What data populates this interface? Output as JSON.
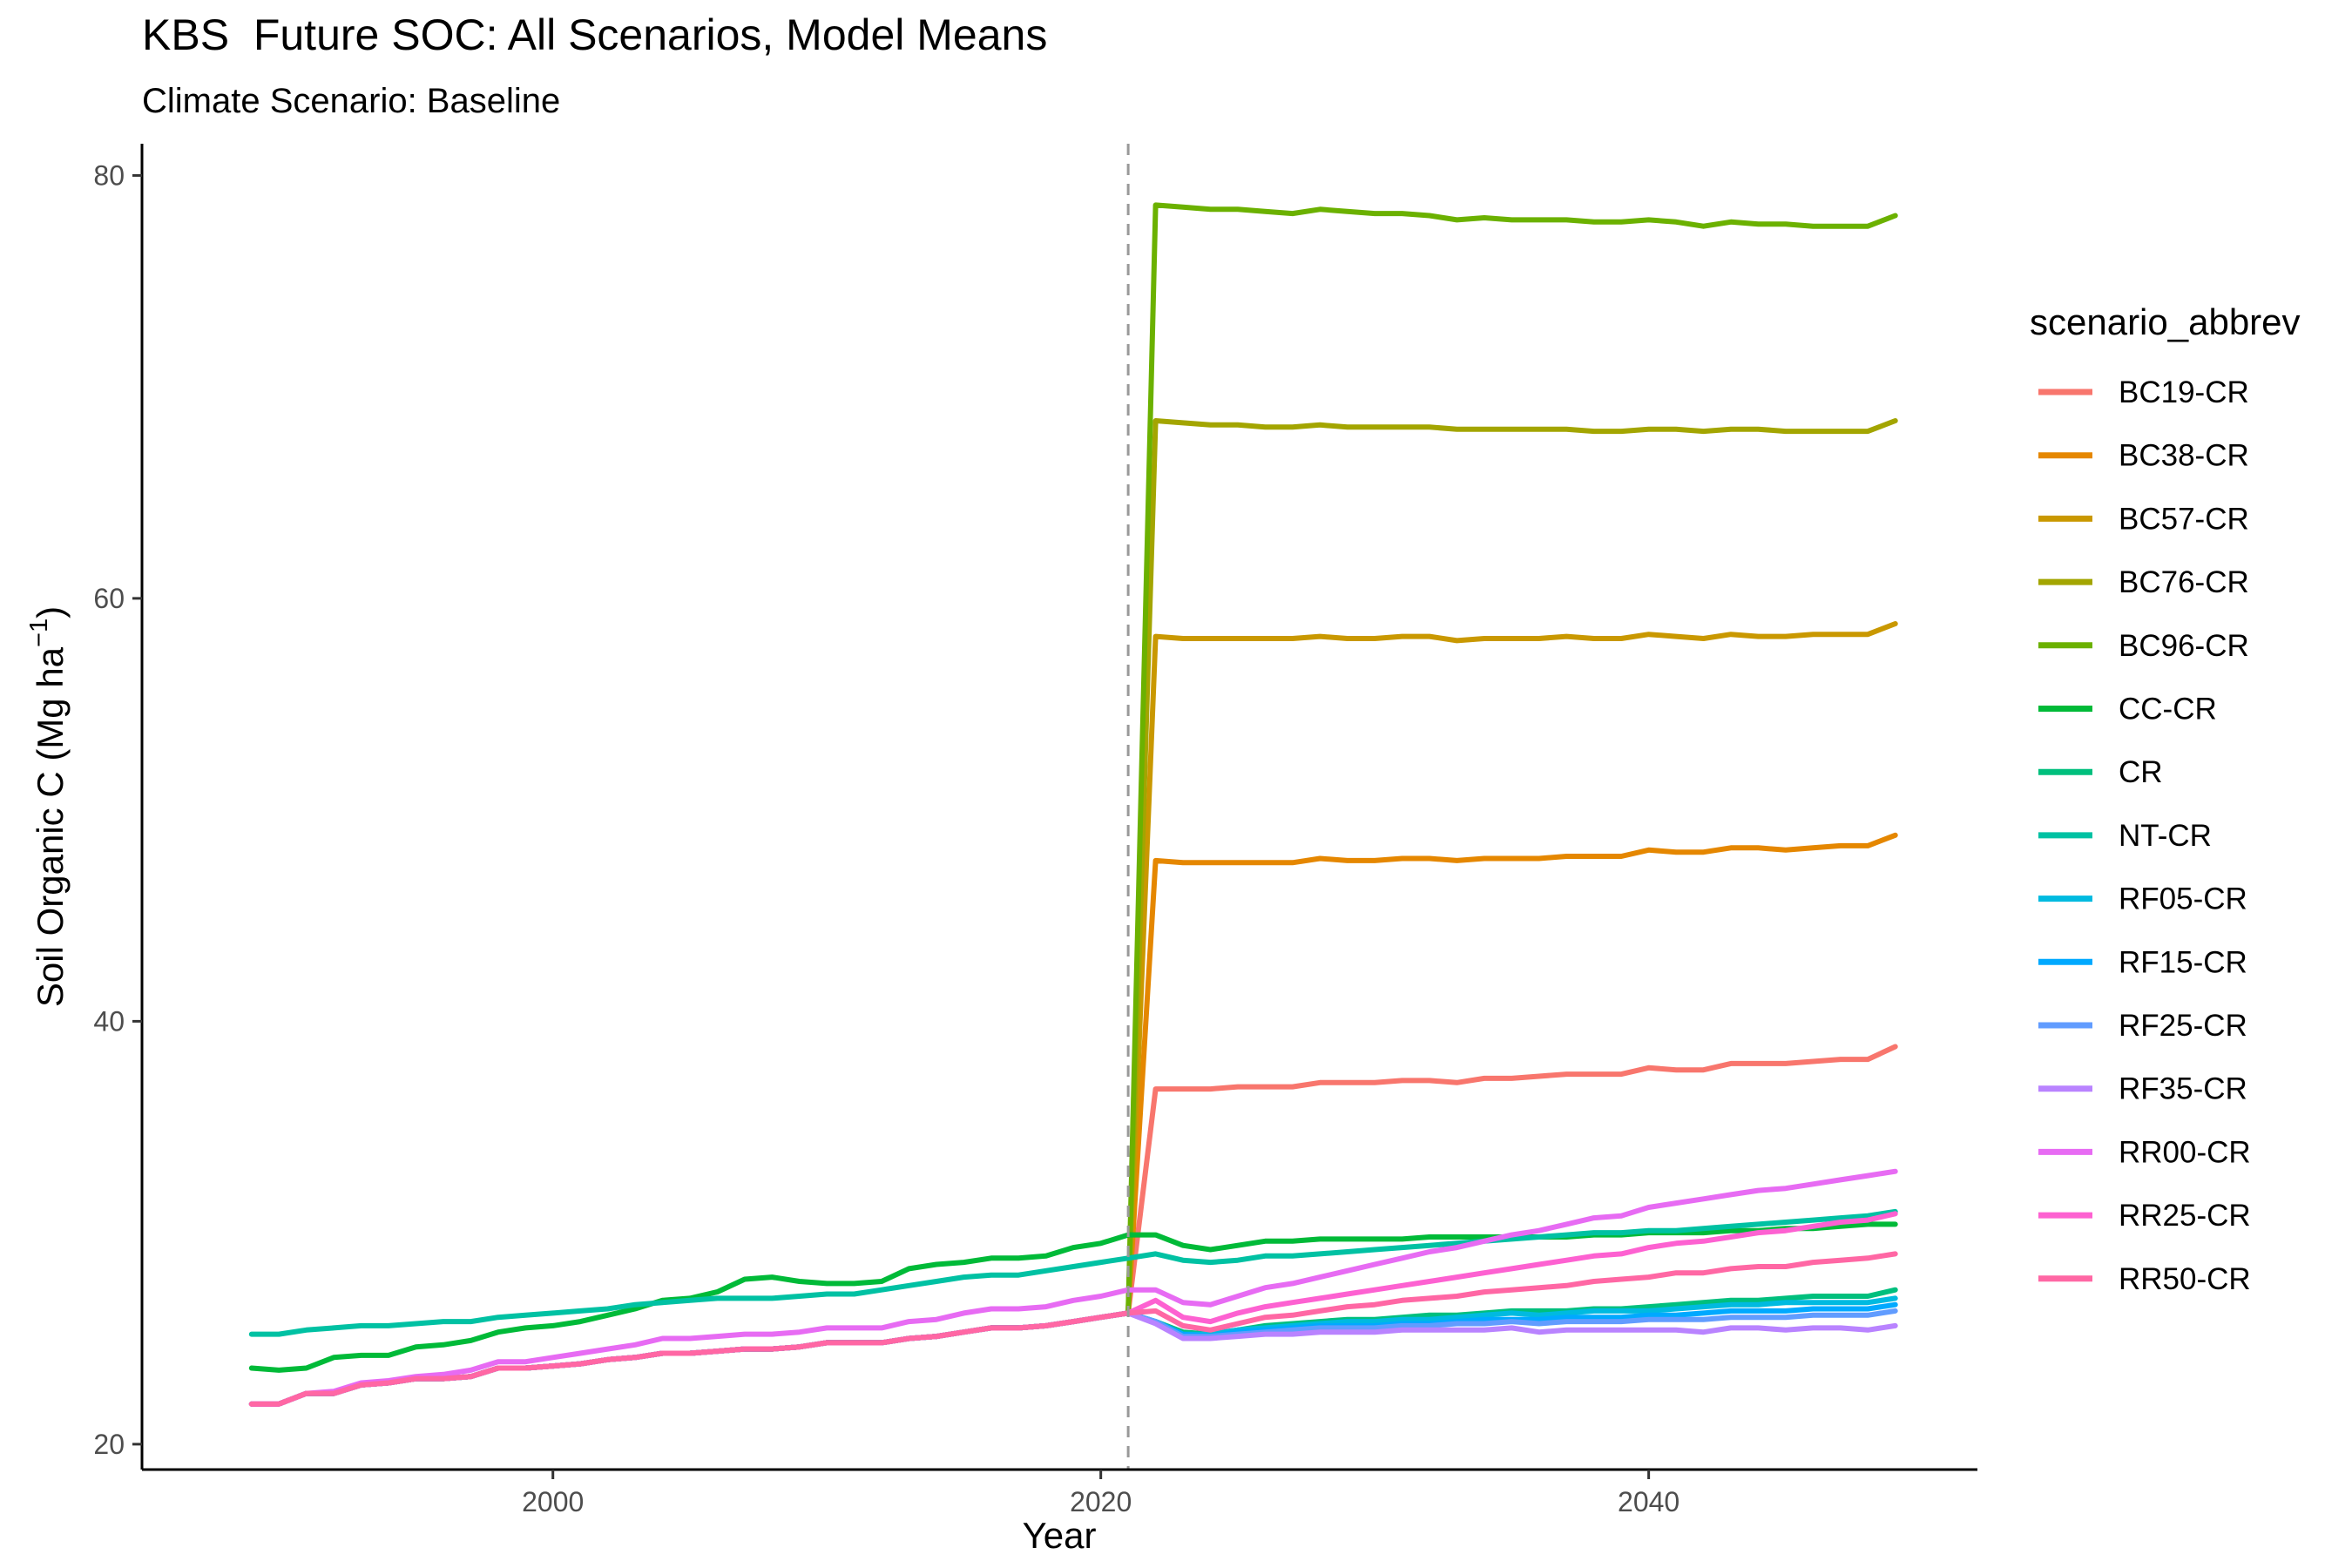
{
  "chart_data": {
    "type": "line",
    "title": "KBS  Future SOC: All Scenarios, Model Means",
    "subtitle": "Climate Scenario: Baseline",
    "xlabel": "Year",
    "ylabel": "Soil Organic C (Mg ha",
    "ylabel_sup": "−1",
    "ylabel_close": ")",
    "xlim": [
      1985,
      2052
    ],
    "ylim": [
      18.8,
      81.5
    ],
    "x_ticks": [
      2000,
      2020,
      2040
    ],
    "y_ticks": [
      20,
      40,
      60,
      80
    ],
    "vline": 2021,
    "grid": false,
    "legend_title": "scenario_abbrev",
    "legend_position": "right",
    "shared": {
      "years_hist": [
        1989,
        1990,
        1991,
        1992,
        1993,
        1994,
        1995,
        1996,
        1997,
        1998,
        1999,
        2000,
        2001,
        2002,
        2003,
        2004,
        2005,
        2006,
        2007,
        2008,
        2009,
        2010,
        2011,
        2012,
        2013,
        2014,
        2015,
        2016,
        2017,
        2018,
        2019,
        2020,
        2021
      ],
      "conv_hist": [
        21.9,
        21.9,
        22.4,
        22.4,
        22.8,
        22.9,
        23.1,
        23.1,
        23.2,
        23.6,
        23.6,
        23.7,
        23.8,
        24.0,
        24.1,
        24.3,
        24.3,
        24.4,
        24.5,
        24.5,
        24.6,
        24.8,
        24.8,
        24.8,
        25.0,
        25.1,
        25.3,
        25.5,
        25.5,
        25.6,
        25.8,
        26.0,
        26.2
      ],
      "years_future": [
        2022,
        2023,
        2024,
        2025,
        2026,
        2027,
        2028,
        2029,
        2030,
        2031,
        2032,
        2033,
        2034,
        2035,
        2036,
        2037,
        2038,
        2039,
        2040,
        2041,
        2042,
        2043,
        2044,
        2045,
        2046,
        2047,
        2048,
        2049
      ]
    },
    "series": [
      {
        "name": "BC19-CR",
        "color": "#F8766D",
        "future": [
          36.8,
          36.8,
          36.8,
          36.9,
          36.9,
          36.9,
          37.1,
          37.1,
          37.1,
          37.2,
          37.2,
          37.1,
          37.3,
          37.3,
          37.4,
          37.5,
          37.5,
          37.5,
          37.8,
          37.7,
          37.7,
          38.0,
          38.0,
          38.0,
          38.1,
          38.2,
          38.2,
          38.8
        ]
      },
      {
        "name": "BC38-CR",
        "color": "#E58700",
        "future": [
          47.6,
          47.5,
          47.5,
          47.5,
          47.5,
          47.5,
          47.7,
          47.6,
          47.6,
          47.7,
          47.7,
          47.6,
          47.7,
          47.7,
          47.7,
          47.8,
          47.8,
          47.8,
          48.1,
          48.0,
          48.0,
          48.2,
          48.2,
          48.1,
          48.2,
          48.3,
          48.3,
          48.8
        ]
      },
      {
        "name": "BC57-CR",
        "color": "#C99800",
        "future": [
          58.2,
          58.1,
          58.1,
          58.1,
          58.1,
          58.1,
          58.2,
          58.1,
          58.1,
          58.2,
          58.2,
          58.0,
          58.1,
          58.1,
          58.1,
          58.2,
          58.1,
          58.1,
          58.3,
          58.2,
          58.1,
          58.3,
          58.2,
          58.2,
          58.3,
          58.3,
          58.3,
          58.8
        ]
      },
      {
        "name": "BC76-CR",
        "color": "#A3A500",
        "future": [
          68.4,
          68.3,
          68.2,
          68.2,
          68.1,
          68.1,
          68.2,
          68.1,
          68.1,
          68.1,
          68.1,
          68.0,
          68.0,
          68.0,
          68.0,
          68.0,
          67.9,
          67.9,
          68.0,
          68.0,
          67.9,
          68.0,
          68.0,
          67.9,
          67.9,
          67.9,
          67.9,
          68.4
        ]
      },
      {
        "name": "BC96-CR",
        "color": "#6BB100",
        "future": [
          78.6,
          78.5,
          78.4,
          78.4,
          78.3,
          78.2,
          78.4,
          78.3,
          78.2,
          78.2,
          78.1,
          77.9,
          78.0,
          77.9,
          77.9,
          77.9,
          77.8,
          77.8,
          77.9,
          77.8,
          77.6,
          77.8,
          77.7,
          77.7,
          77.6,
          77.6,
          77.6,
          78.1
        ]
      },
      {
        "name": "CC-CR",
        "color": "#00BA38",
        "start": [
          23.6,
          23.5,
          23.6,
          24.1,
          24.2,
          24.2,
          24.6,
          24.7,
          24.9,
          25.3,
          25.5,
          25.6,
          25.8,
          26.1,
          26.4,
          26.8,
          26.9,
          27.2,
          27.8,
          27.9,
          27.7,
          27.6,
          27.6,
          27.7,
          28.3,
          28.5,
          28.6,
          28.8,
          28.8,
          28.9,
          29.3,
          29.5,
          29.9
        ],
        "future": [
          29.9,
          29.4,
          29.2,
          29.4,
          29.6,
          29.6,
          29.7,
          29.7,
          29.7,
          29.7,
          29.8,
          29.8,
          29.8,
          29.8,
          29.8,
          29.8,
          29.9,
          29.9,
          30.0,
          30.0,
          30.0,
          30.1,
          30.1,
          30.2,
          30.2,
          30.3,
          30.4,
          30.4
        ]
      },
      {
        "name": "CR",
        "color": "#00BF7D",
        "future": [
          25.8,
          25.3,
          25.2,
          25.4,
          25.6,
          25.7,
          25.8,
          25.9,
          25.9,
          26.0,
          26.1,
          26.1,
          26.2,
          26.3,
          26.3,
          26.3,
          26.4,
          26.4,
          26.5,
          26.6,
          26.7,
          26.8,
          26.8,
          26.9,
          27.0,
          27.0,
          27.0,
          27.3
        ]
      },
      {
        "name": "NT-CR",
        "color": "#00C1A3",
        "start": [
          25.2,
          25.2,
          25.4,
          25.5,
          25.6,
          25.6,
          25.7,
          25.8,
          25.8,
          26.0,
          26.1,
          26.2,
          26.3,
          26.4,
          26.6,
          26.7,
          26.8,
          26.9,
          26.9,
          26.9,
          27.0,
          27.1,
          27.1,
          27.3,
          27.5,
          27.7,
          27.9,
          28.0,
          28.0,
          28.2,
          28.4,
          28.6,
          28.8
        ],
        "future": [
          29.0,
          28.7,
          28.6,
          28.7,
          28.9,
          28.9,
          29.0,
          29.1,
          29.2,
          29.3,
          29.4,
          29.5,
          29.6,
          29.7,
          29.8,
          29.9,
          30.0,
          30.0,
          30.1,
          30.1,
          30.2,
          30.3,
          30.4,
          30.5,
          30.6,
          30.7,
          30.8,
          31.0
        ]
      },
      {
        "name": "RF05-CR",
        "color": "#00BAE0",
        "future": [
          25.8,
          25.2,
          25.2,
          25.4,
          25.5,
          25.6,
          25.7,
          25.8,
          25.8,
          25.9,
          25.9,
          26.0,
          26.1,
          26.2,
          26.1,
          26.2,
          26.3,
          26.3,
          26.3,
          26.4,
          26.5,
          26.6,
          26.6,
          26.7,
          26.7,
          26.7,
          26.7,
          26.9
        ]
      },
      {
        "name": "RF15-CR",
        "color": "#00A9FF",
        "future": [
          25.8,
          25.2,
          25.1,
          25.3,
          25.4,
          25.5,
          25.6,
          25.6,
          25.6,
          25.7,
          25.7,
          25.8,
          25.9,
          25.9,
          25.9,
          26.0,
          26.0,
          26.0,
          26.1,
          26.1,
          26.2,
          26.3,
          26.3,
          26.3,
          26.4,
          26.4,
          26.4,
          26.6
        ]
      },
      {
        "name": "RF25-CR",
        "color": "#619CFF",
        "future": [
          25.8,
          25.1,
          25.1,
          25.2,
          25.3,
          25.4,
          25.5,
          25.5,
          25.5,
          25.6,
          25.6,
          25.7,
          25.7,
          25.8,
          25.7,
          25.8,
          25.8,
          25.8,
          25.9,
          25.9,
          25.9,
          26.0,
          26.0,
          26.0,
          26.1,
          26.1,
          26.1,
          26.3
        ]
      },
      {
        "name": "RF35-CR",
        "color": "#B983FF",
        "future": [
          25.7,
          25.0,
          25.0,
          25.1,
          25.2,
          25.2,
          25.3,
          25.3,
          25.3,
          25.4,
          25.4,
          25.4,
          25.4,
          25.5,
          25.3,
          25.4,
          25.4,
          25.4,
          25.4,
          25.4,
          25.3,
          25.5,
          25.5,
          25.4,
          25.5,
          25.5,
          25.4,
          25.6
        ]
      },
      {
        "name": "RR00-CR",
        "color": "#E76BF3",
        "start": [
          21.9,
          21.9,
          22.4,
          22.5,
          22.9,
          23.0,
          23.2,
          23.3,
          23.5,
          23.9,
          23.9,
          24.1,
          24.3,
          24.5,
          24.7,
          25.0,
          25.0,
          25.1,
          25.2,
          25.2,
          25.3,
          25.5,
          25.5,
          25.5,
          25.8,
          25.9,
          26.2,
          26.4,
          26.4,
          26.5,
          26.8,
          27.0,
          27.3
        ],
        "future": [
          27.3,
          26.7,
          26.6,
          27.0,
          27.4,
          27.6,
          27.9,
          28.2,
          28.5,
          28.8,
          29.1,
          29.3,
          29.6,
          29.9,
          30.1,
          30.4,
          30.7,
          30.8,
          31.2,
          31.4,
          31.6,
          31.8,
          32.0,
          32.1,
          32.3,
          32.5,
          32.7,
          32.9
        ]
      },
      {
        "name": "RR25-CR",
        "color": "#FD61D1",
        "future": [
          26.8,
          26.0,
          25.8,
          26.2,
          26.5,
          26.7,
          26.9,
          27.1,
          27.3,
          27.5,
          27.7,
          27.9,
          28.1,
          28.3,
          28.5,
          28.7,
          28.9,
          29.0,
          29.3,
          29.5,
          29.6,
          29.8,
          30.0,
          30.1,
          30.3,
          30.5,
          30.6,
          30.9
        ]
      },
      {
        "name": "RR50-CR",
        "color": "#FF67A4",
        "future": [
          26.3,
          25.6,
          25.4,
          25.7,
          26.0,
          26.1,
          26.3,
          26.5,
          26.6,
          26.8,
          26.9,
          27.0,
          27.2,
          27.3,
          27.4,
          27.5,
          27.7,
          27.8,
          27.9,
          28.1,
          28.1,
          28.3,
          28.4,
          28.4,
          28.6,
          28.7,
          28.8,
          29.0
        ]
      }
    ]
  }
}
